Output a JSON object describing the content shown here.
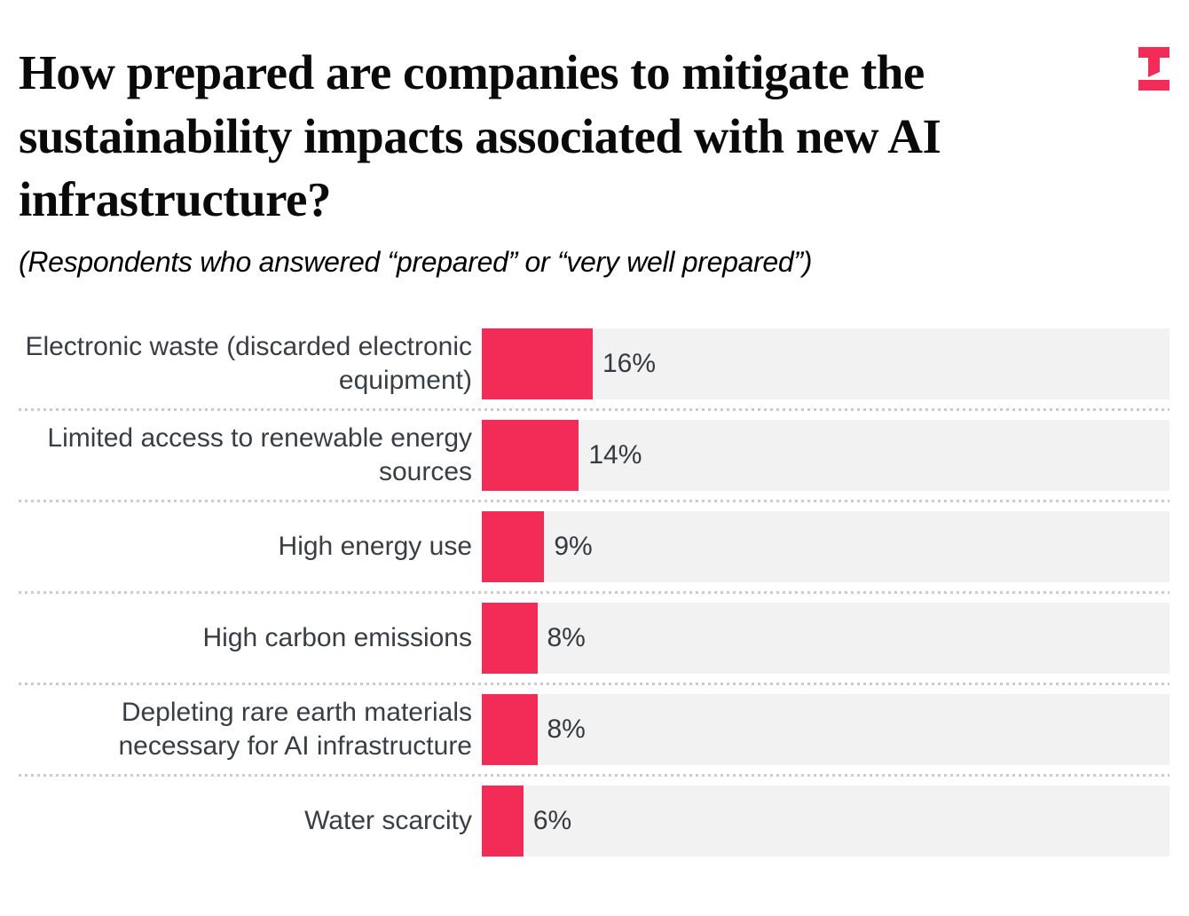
{
  "header": {
    "title": "How prepared are companies to mitigate the sustainability impacts associated with new AI infrastructure?",
    "subtitle": "(Respondents who answered “prepared” or “very well prepared”)",
    "logo": "techtarget-mark"
  },
  "colors": {
    "bar": "#f22c57",
    "track": "#f2f2f2",
    "separator": "#cbcbcb",
    "title_text": "#0a0a0a",
    "label_text": "#383e44",
    "value_text": "#343a40",
    "logo": "#f22c57"
  },
  "chart_data": {
    "type": "bar",
    "orientation": "horizontal",
    "title": "How prepared are companies to mitigate the sustainability impacts associated with new AI infrastructure?",
    "subtitle": "(Respondents who answered “prepared” or “very well prepared”)",
    "categories": [
      "Electronic waste (discarded electronic equipment)",
      "Limited access to renewable energy sources",
      "High energy use",
      "High carbon emissions",
      "Depleting rare earth materials necessary for AI infrastructure",
      "Water scarcity"
    ],
    "values": [
      16,
      14,
      9,
      8,
      8,
      6
    ],
    "value_labels": [
      "16%",
      "14%",
      "9%",
      "8%",
      "8%",
      "6%"
    ],
    "xlabel": "",
    "ylabel": "",
    "xlim": [
      0,
      100
    ],
    "grid": false,
    "legend": false,
    "bar_color": "#f22c57",
    "track_color": "#f2f2f2"
  }
}
